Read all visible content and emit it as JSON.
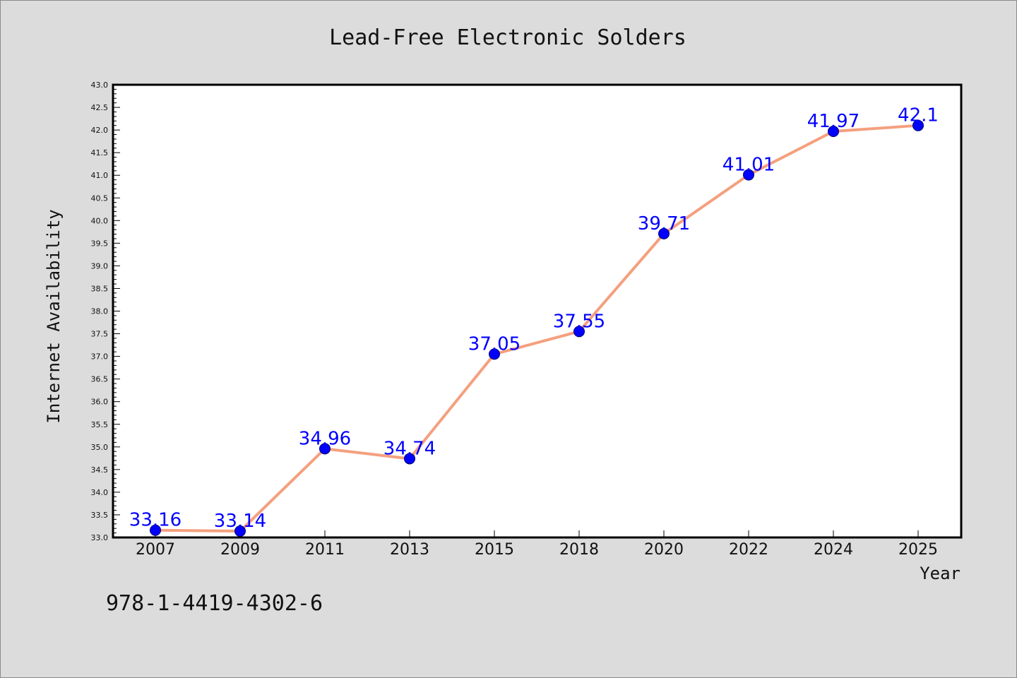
{
  "chart_data": {
    "type": "line",
    "title": "Lead-Free Electronic Solders",
    "xlabel": "Year",
    "ylabel": "Internet Availability",
    "categories": [
      "2007",
      "2009",
      "2011",
      "2013",
      "2015",
      "2018",
      "2020",
      "2022",
      "2024",
      "2025"
    ],
    "values": [
      33.16,
      33.14,
      34.96,
      34.74,
      37.05,
      37.55,
      39.71,
      41.01,
      41.97,
      42.1
    ],
    "data_labels": [
      "33.16",
      "33.14",
      "34.96",
      "34.74",
      "37.05",
      "37.55",
      "39.71",
      "41.01",
      "41.97",
      "42.1"
    ],
    "ylim": [
      33.0,
      43.0
    ],
    "yticks": [
      "33.0",
      "33.5",
      "34.0",
      "34.5",
      "35.0",
      "35.5",
      "36.0",
      "36.5",
      "37.0",
      "37.5",
      "38.0",
      "38.5",
      "39.0",
      "39.5",
      "40.0",
      "40.5",
      "41.0",
      "41.5",
      "42.0",
      "42.5",
      "43.0"
    ],
    "grid": false,
    "line_color": "#f4a07f",
    "marker_color": "#0000ff",
    "label_color": "#0000ff"
  },
  "footer_text": "978-1-4419-4302-6"
}
